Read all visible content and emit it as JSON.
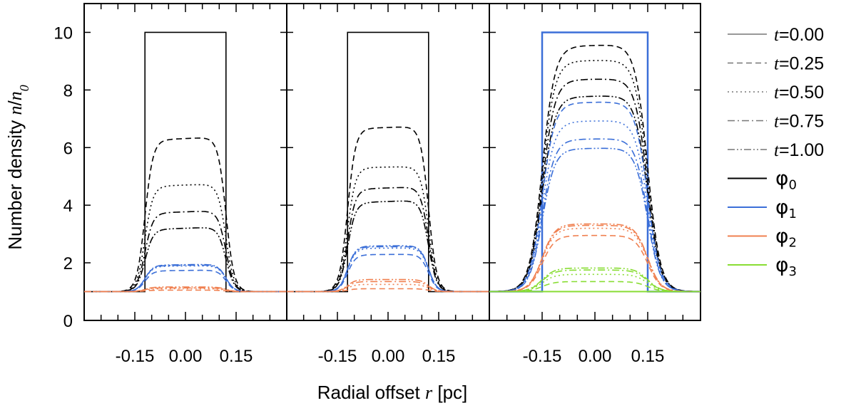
{
  "chart_data": {
    "type": "line",
    "ylabel": "Number density n/n0",
    "ylabel_parts": {
      "text": "Number density ",
      "var_n": "n",
      "slash": "/",
      "var_n0": "n",
      "sub0": "0"
    },
    "xlabel": "Radial offset r [pc]",
    "xlabel_parts": {
      "text": "Radial offset ",
      "var": "r",
      "unit": " [pc]"
    },
    "ylim": [
      0,
      11
    ],
    "xlim": [
      -0.3,
      0.3
    ],
    "y_ticks": [
      0,
      2,
      4,
      6,
      8,
      10
    ],
    "y_tick_labels": [
      "0",
      "2",
      "4",
      "6",
      "8",
      "10"
    ],
    "x_ticks": [
      -0.15,
      0.0,
      0.15
    ],
    "x_tick_labels": [
      "-0.15",
      "0.00",
      "0.15"
    ],
    "legend": {
      "placement": "right",
      "time_entries": [
        {
          "var": "t",
          "value": "=0.00",
          "dash": "solid"
        },
        {
          "var": "t",
          "value": "=0.25",
          "dash": "dashed"
        },
        {
          "var": "t",
          "value": "=0.50",
          "dash": "dotted"
        },
        {
          "var": "t",
          "value": "=0.75",
          "dash": "dashdot"
        },
        {
          "var": "t",
          "value": "=1.00",
          "dash": "dashdotdot"
        }
      ],
      "species_entries": [
        {
          "symbol": "φ",
          "sub": "0",
          "color": "#000000"
        },
        {
          "symbol": "φ",
          "sub": "1",
          "color": "#3b6fd8"
        },
        {
          "symbol": "φ",
          "sub": "2",
          "color": "#f08050"
        },
        {
          "symbol": "φ",
          "sub": "3",
          "color": "#88dd33"
        }
      ]
    },
    "panels": [
      {
        "panel": 1,
        "initial": {
          "species": "φ0",
          "r_min": -0.12,
          "r_max": 0.12,
          "inside": 10,
          "outside": 1
        },
        "series": [
          {
            "species": "φ0",
            "t": "0.25",
            "plateau_left": 6.25,
            "plateau_right": 6.38
          },
          {
            "species": "φ0",
            "t": "0.50",
            "plateau_left": 4.65,
            "plateau_right": 4.75
          },
          {
            "species": "φ0",
            "t": "0.75",
            "plateau_left": 3.72,
            "plateau_right": 3.82
          },
          {
            "species": "φ0",
            "t": "1.00",
            "plateau_left": 3.15,
            "plateau_right": 3.25
          },
          {
            "species": "φ1",
            "t": "0.25",
            "plateau_left": 1.72,
            "plateau_right": 1.75
          },
          {
            "species": "φ1",
            "t": "0.50",
            "plateau_left": 1.88,
            "plateau_right": 1.9
          },
          {
            "species": "φ1",
            "t": "0.75",
            "plateau_left": 1.9,
            "plateau_right": 1.93
          },
          {
            "species": "φ1",
            "t": "1.00",
            "plateau_left": 1.92,
            "plateau_right": 1.95
          },
          {
            "species": "φ2",
            "t": "0.25",
            "plateau_left": 1.05,
            "plateau_right": 1.05
          },
          {
            "species": "φ2",
            "t": "0.50",
            "plateau_left": 1.1,
            "plateau_right": 1.1
          },
          {
            "species": "φ2",
            "t": "0.75",
            "plateau_left": 1.13,
            "plateau_right": 1.13
          },
          {
            "species": "φ2",
            "t": "1.00",
            "plateau_left": 1.16,
            "plateau_right": 1.16
          }
        ]
      },
      {
        "panel": 2,
        "initial": {
          "species": "φ0",
          "r_min": -0.12,
          "r_max": 0.12,
          "inside": 10,
          "outside": 1
        },
        "series": [
          {
            "species": "φ0",
            "t": "0.25",
            "plateau_left": 6.65,
            "plateau_right": 6.75
          },
          {
            "species": "φ0",
            "t": "0.50",
            "plateau_left": 5.3,
            "plateau_right": 5.35
          },
          {
            "species": "φ0",
            "t": "0.75",
            "plateau_left": 4.55,
            "plateau_right": 4.65
          },
          {
            "species": "φ0",
            "t": "1.00",
            "plateau_left": 4.08,
            "plateau_right": 4.18
          },
          {
            "species": "φ1",
            "t": "0.25",
            "plateau_left": 2.28,
            "plateau_right": 2.3
          },
          {
            "species": "φ1",
            "t": "0.50",
            "plateau_left": 2.5,
            "plateau_right": 2.52
          },
          {
            "species": "φ1",
            "t": "0.75",
            "plateau_left": 2.55,
            "plateau_right": 2.57
          },
          {
            "species": "φ1",
            "t": "1.00",
            "plateau_left": 2.58,
            "plateau_right": 2.6
          },
          {
            "species": "φ2",
            "t": "0.25",
            "plateau_left": 1.1,
            "plateau_right": 1.1
          },
          {
            "species": "φ2",
            "t": "0.50",
            "plateau_left": 1.25,
            "plateau_right": 1.25
          },
          {
            "species": "φ2",
            "t": "0.75",
            "plateau_left": 1.35,
            "plateau_right": 1.35
          },
          {
            "species": "φ2",
            "t": "1.00",
            "plateau_left": 1.42,
            "plateau_right": 1.42
          }
        ]
      },
      {
        "panel": 3,
        "initial": {
          "species": "φ1",
          "r_min": -0.15,
          "r_max": 0.15,
          "inside": 10,
          "outside": 1
        },
        "series": [
          {
            "species": "φ0",
            "t": "0.25",
            "plateau_left": 9.5,
            "plateau_right": 9.6
          },
          {
            "species": "φ0",
            "t": "0.50",
            "plateau_left": 9.0,
            "plateau_right": 9.05
          },
          {
            "species": "φ0",
            "t": "0.75",
            "plateau_left": 8.35,
            "plateau_right": 8.4
          },
          {
            "species": "φ0",
            "t": "1.00",
            "plateau_left": 7.75,
            "plateau_right": 7.82
          },
          {
            "species": "φ1",
            "t": "0.25",
            "plateau_left": 7.55,
            "plateau_right": 7.6
          },
          {
            "species": "φ1",
            "t": "0.50",
            "plateau_left": 6.9,
            "plateau_right": 6.95
          },
          {
            "species": "φ1",
            "t": "0.75",
            "plateau_left": 6.28,
            "plateau_right": 6.32
          },
          {
            "species": "φ1",
            "t": "1.00",
            "plateau_left": 5.95,
            "plateau_right": 6.0
          },
          {
            "species": "φ2",
            "t": "0.25",
            "plateau_left": 2.95,
            "plateau_right": 2.95
          },
          {
            "species": "φ2",
            "t": "0.50",
            "plateau_left": 3.2,
            "plateau_right": 3.2
          },
          {
            "species": "φ2",
            "t": "0.75",
            "plateau_left": 3.3,
            "plateau_right": 3.3
          },
          {
            "species": "φ2",
            "t": "1.00",
            "plateau_left": 3.35,
            "plateau_right": 3.35
          },
          {
            "species": "φ3",
            "t": "0.25",
            "plateau_left": 1.35,
            "plateau_right": 1.35
          },
          {
            "species": "φ3",
            "t": "0.50",
            "plateau_left": 1.6,
            "plateau_right": 1.6
          },
          {
            "species": "φ3",
            "t": "0.75",
            "plateau_left": 1.75,
            "plateau_right": 1.75
          },
          {
            "species": "φ3",
            "t": "1.00",
            "plateau_left": 1.82,
            "plateau_right": 1.82
          }
        ],
        "initial_zero": [
          {
            "species": "φ2",
            "value": 1
          },
          {
            "species": "φ3",
            "value": 1
          }
        ]
      }
    ],
    "colors": {
      "phi0": "#000000",
      "phi1": "#3b6fd8",
      "phi2": "#f08050",
      "phi3": "#88dd33"
    }
  }
}
